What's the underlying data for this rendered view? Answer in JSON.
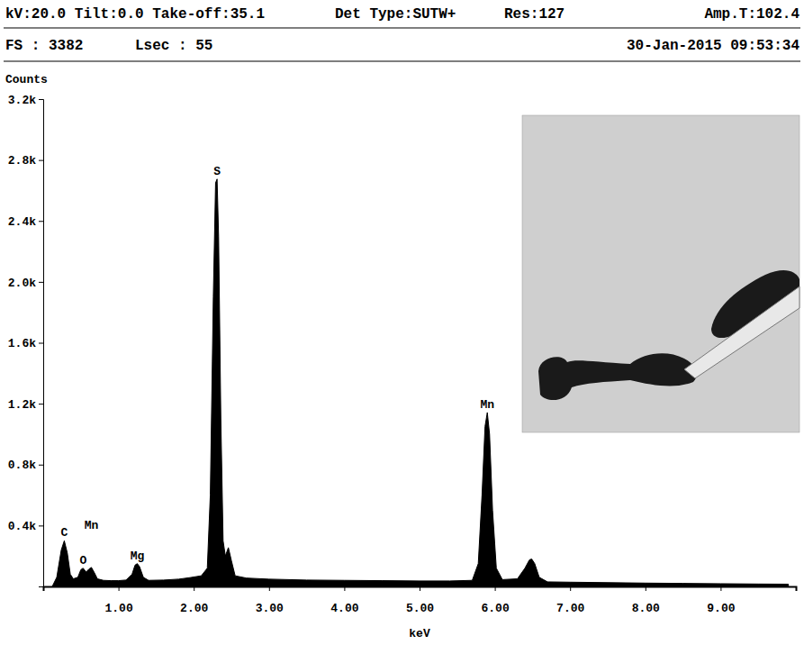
{
  "chart_data": {
    "type": "area",
    "color": "#000000",
    "header": [
      "kV:20.0 Tilt:0.0 Take-off:35.1",
      "Det Type:SUTW+",
      "Res:127",
      "Amp.T:102.4",
      "FS : 3382",
      "Lsec : 55",
      "30-Jan-2015 09:53:34"
    ],
    "y_label": "Counts",
    "x_label": "keV",
    "x": [
      0.12,
      0.18,
      0.24,
      0.28,
      0.32,
      0.36,
      0.4,
      0.46,
      0.5,
      0.53,
      0.57,
      0.61,
      0.64,
      0.68,
      0.72,
      0.8,
      0.9,
      1.0,
      1.1,
      1.18,
      1.22,
      1.25,
      1.28,
      1.33,
      1.4,
      1.6,
      1.8,
      1.95,
      2.1,
      2.18,
      2.22,
      2.26,
      2.29,
      2.31,
      2.33,
      2.36,
      2.39,
      2.42,
      2.46,
      2.5,
      2.55,
      2.7,
      3.0,
      3.5,
      4.0,
      4.5,
      5.0,
      5.4,
      5.7,
      5.78,
      5.83,
      5.87,
      5.9,
      5.93,
      5.97,
      6.02,
      6.1,
      6.3,
      6.4,
      6.46,
      6.49,
      6.53,
      6.59,
      6.7,
      7.0,
      7.5,
      8.0,
      8.5,
      9.0,
      9.5,
      9.9
    ],
    "values": [
      0,
      60,
      240,
      300,
      220,
      80,
      50,
      60,
      110,
      120,
      95,
      115,
      125,
      90,
      50,
      40,
      38,
      38,
      42,
      80,
      140,
      150,
      130,
      60,
      40,
      42,
      48,
      58,
      70,
      120,
      600,
      1900,
      2650,
      2675,
      2300,
      1100,
      300,
      200,
      255,
      170,
      70,
      55,
      48,
      42,
      40,
      38,
      36,
      36,
      40,
      150,
      600,
      1050,
      1142,
      1000,
      500,
      120,
      45,
      50,
      120,
      175,
      180,
      150,
      60,
      30,
      28,
      25,
      22,
      20,
      18,
      16,
      15
    ],
    "xlim": [
      0,
      10
    ],
    "ylim": [
      0,
      3200
    ],
    "xticks": [
      {
        "value": 1,
        "label": "1.00"
      },
      {
        "value": 2,
        "label": "2.00"
      },
      {
        "value": 3,
        "label": "3.00"
      },
      {
        "value": 4,
        "label": "4.00"
      },
      {
        "value": 5,
        "label": "5.00"
      },
      {
        "value": 6,
        "label": "6.00"
      },
      {
        "value": 7,
        "label": "7.00"
      },
      {
        "value": 8,
        "label": "8.00"
      },
      {
        "value": 9,
        "label": "9.00"
      }
    ],
    "yticks": [
      {
        "value": 400,
        "label": "0.4k"
      },
      {
        "value": 800,
        "label": "0.8k"
      },
      {
        "value": 1200,
        "label": "1.2k"
      },
      {
        "value": 1600,
        "label": "1.6k"
      },
      {
        "value": 2000,
        "label": "2.0k"
      },
      {
        "value": 2400,
        "label": "2.4k"
      },
      {
        "value": 2800,
        "label": "2.8k"
      },
      {
        "value": 3200,
        "label": "3.2k"
      }
    ],
    "annotations": [
      {
        "text": "C",
        "x": 0.28,
        "y": 300
      },
      {
        "text": "O",
        "x": 0.53,
        "y": 120
      },
      {
        "text": "Mn",
        "x": 0.64,
        "y": 350
      },
      {
        "text": "Mg",
        "x": 1.25,
        "y": 150
      },
      {
        "text": "S",
        "x": 2.31,
        "y": 2675
      },
      {
        "text": "Mn",
        "x": 5.9,
        "y": 1142
      }
    ]
  }
}
